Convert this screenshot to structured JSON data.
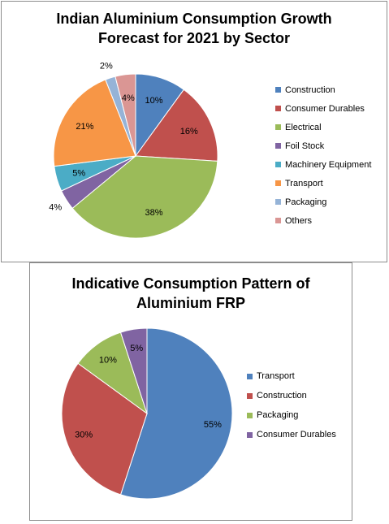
{
  "chart_data": [
    {
      "type": "pie",
      "title": "Indian Aluminium Consumption Growth Forecast for 2021 by Sector",
      "title_lines": [
        "Indian Aluminium Consumption Growth",
        "Forecast for 2021 by Sector"
      ],
      "legend_position": "right",
      "slices": [
        {
          "label": "Construction",
          "value": 10,
          "display": "10%",
          "color": "#4F81BD"
        },
        {
          "label": "Consumer Durables",
          "value": 16,
          "display": "16%",
          "color": "#C0504D"
        },
        {
          "label": "Electrical",
          "value": 38,
          "display": "38%",
          "color": "#9BBB59"
        },
        {
          "label": "Foil Stock",
          "value": 4,
          "display": "4%",
          "color": "#8064A2"
        },
        {
          "label": "Machinery Equipment",
          "value": 5,
          "display": "5%",
          "color": "#4BACC6"
        },
        {
          "label": "Transport",
          "value": 21,
          "display": "21%",
          "color": "#F79646"
        },
        {
          "label": "Packaging",
          "value": 2,
          "display": "2%",
          "color": "#95B3D7"
        },
        {
          "label": "Others",
          "value": 4,
          "display": "4%",
          "color": "#DA9694"
        }
      ]
    },
    {
      "type": "pie",
      "title": "Indicative Consumption Pattern of Aluminium FRP",
      "title_lines": [
        "Indicative Consumption Pattern of",
        "Aluminium FRP"
      ],
      "legend_position": "right",
      "slices": [
        {
          "label": "Transport",
          "value": 55,
          "display": "55%",
          "color": "#4F81BD"
        },
        {
          "label": "Construction",
          "value": 30,
          "display": "30%",
          "color": "#C0504D"
        },
        {
          "label": "Packaging",
          "value": 10,
          "display": "10%",
          "color": "#9BBB59"
        },
        {
          "label": "Consumer Durables",
          "value": 5,
          "display": "5%",
          "color": "#8064A2"
        }
      ]
    }
  ]
}
